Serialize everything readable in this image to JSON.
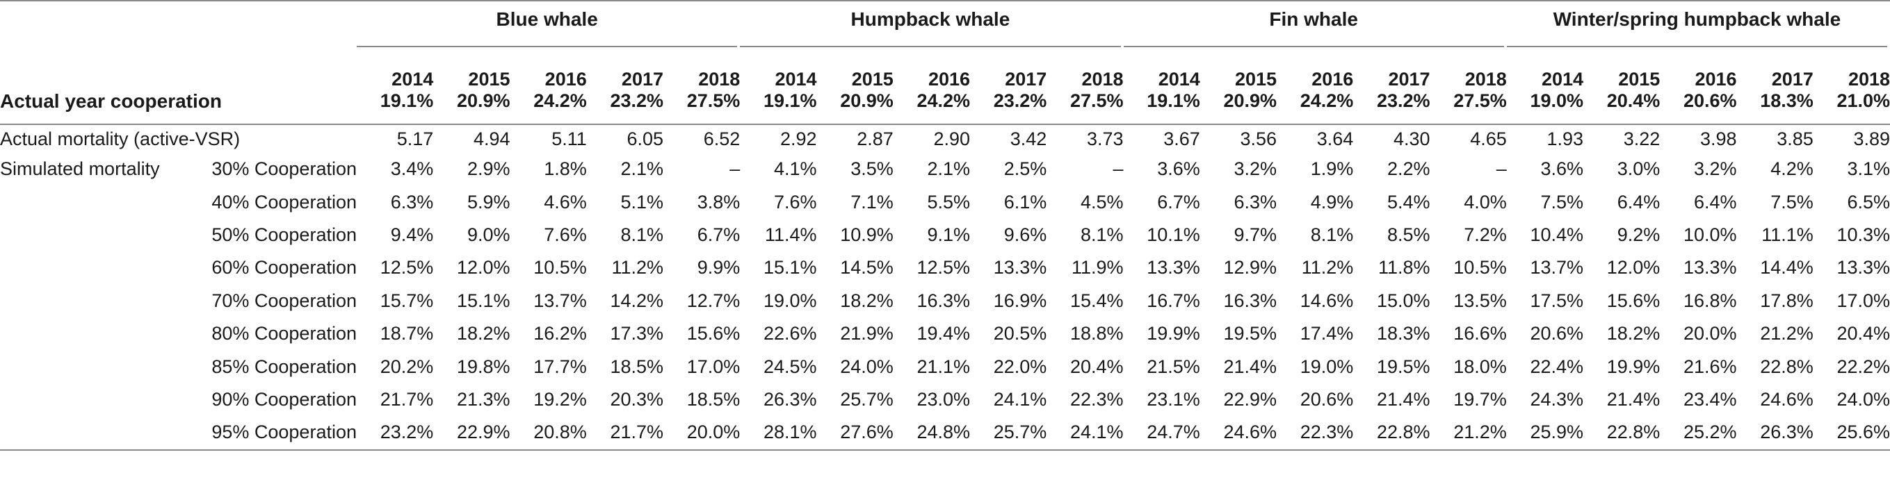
{
  "header": {
    "corner_label": "Actual year cooperation",
    "groups": [
      {
        "name": "Blue whale",
        "years": [
          "2014",
          "2015",
          "2016",
          "2017",
          "2018"
        ],
        "pcts": [
          "19.1%",
          "20.9%",
          "24.2%",
          "23.2%",
          "27.5%"
        ]
      },
      {
        "name": "Humpback whale",
        "years": [
          "2014",
          "2015",
          "2016",
          "2017",
          "2018"
        ],
        "pcts": [
          "19.1%",
          "20.9%",
          "24.2%",
          "23.2%",
          "27.5%"
        ]
      },
      {
        "name": "Fin whale",
        "years": [
          "2014",
          "2015",
          "2016",
          "2017",
          "2018"
        ],
        "pcts": [
          "19.1%",
          "20.9%",
          "24.2%",
          "23.2%",
          "27.5%"
        ]
      },
      {
        "name": "Winter/spring humpback whale",
        "years": [
          "2014",
          "2015",
          "2016",
          "2017",
          "2018"
        ],
        "pcts": [
          "19.0%",
          "20.4%",
          "20.6%",
          "18.3%",
          "21.0%"
        ]
      }
    ]
  },
  "rows": [
    {
      "label": "Actual mortality (active-VSR)",
      "sub": "",
      "values": [
        "5.17",
        "4.94",
        "5.11",
        "6.05",
        "6.52",
        "2.92",
        "2.87",
        "2.90",
        "3.42",
        "3.73",
        "3.67",
        "3.56",
        "3.64",
        "4.30",
        "4.65",
        "1.93",
        "3.22",
        "3.98",
        "3.85",
        "3.89"
      ]
    },
    {
      "label": "Simulated mortality",
      "sub": "30% Cooperation",
      "values": [
        "3.4%",
        "2.9%",
        "1.8%",
        "2.1%",
        "–",
        "4.1%",
        "3.5%",
        "2.1%",
        "2.5%",
        "–",
        "3.6%",
        "3.2%",
        "1.9%",
        "2.2%",
        "–",
        "3.6%",
        "3.0%",
        "3.2%",
        "4.2%",
        "3.1%"
      ]
    },
    {
      "label": "",
      "sub": "40% Cooperation",
      "values": [
        "6.3%",
        "5.9%",
        "4.6%",
        "5.1%",
        "3.8%",
        "7.6%",
        "7.1%",
        "5.5%",
        "6.1%",
        "4.5%",
        "6.7%",
        "6.3%",
        "4.9%",
        "5.4%",
        "4.0%",
        "7.5%",
        "6.4%",
        "6.4%",
        "7.5%",
        "6.5%"
      ]
    },
    {
      "label": "",
      "sub": "50% Cooperation",
      "values": [
        "9.4%",
        "9.0%",
        "7.6%",
        "8.1%",
        "6.7%",
        "11.4%",
        "10.9%",
        "9.1%",
        "9.6%",
        "8.1%",
        "10.1%",
        "9.7%",
        "8.1%",
        "8.5%",
        "7.2%",
        "10.4%",
        "9.2%",
        "10.0%",
        "11.1%",
        "10.3%"
      ]
    },
    {
      "label": "",
      "sub": "60% Cooperation",
      "values": [
        "12.5%",
        "12.0%",
        "10.5%",
        "11.2%",
        "9.9%",
        "15.1%",
        "14.5%",
        "12.5%",
        "13.3%",
        "11.9%",
        "13.3%",
        "12.9%",
        "11.2%",
        "11.8%",
        "10.5%",
        "13.7%",
        "12.0%",
        "13.3%",
        "14.4%",
        "13.3%"
      ]
    },
    {
      "label": "",
      "sub": "70% Cooperation",
      "values": [
        "15.7%",
        "15.1%",
        "13.7%",
        "14.2%",
        "12.7%",
        "19.0%",
        "18.2%",
        "16.3%",
        "16.9%",
        "15.4%",
        "16.7%",
        "16.3%",
        "14.6%",
        "15.0%",
        "13.5%",
        "17.5%",
        "15.6%",
        "16.8%",
        "17.8%",
        "17.0%"
      ]
    },
    {
      "label": "",
      "sub": "80% Cooperation",
      "values": [
        "18.7%",
        "18.2%",
        "16.2%",
        "17.3%",
        "15.6%",
        "22.6%",
        "21.9%",
        "19.4%",
        "20.5%",
        "18.8%",
        "19.9%",
        "19.5%",
        "17.4%",
        "18.3%",
        "16.6%",
        "20.6%",
        "18.2%",
        "20.0%",
        "21.2%",
        "20.4%"
      ]
    },
    {
      "label": "",
      "sub": "85% Cooperation",
      "values": [
        "20.2%",
        "19.8%",
        "17.7%",
        "18.5%",
        "17.0%",
        "24.5%",
        "24.0%",
        "21.1%",
        "22.0%",
        "20.4%",
        "21.5%",
        "21.4%",
        "19.0%",
        "19.5%",
        "18.0%",
        "22.4%",
        "19.9%",
        "21.6%",
        "22.8%",
        "22.2%"
      ]
    },
    {
      "label": "",
      "sub": "90% Cooperation",
      "values": [
        "21.7%",
        "21.3%",
        "19.2%",
        "20.3%",
        "18.5%",
        "26.3%",
        "25.7%",
        "23.0%",
        "24.1%",
        "22.3%",
        "23.1%",
        "22.9%",
        "20.6%",
        "21.4%",
        "19.7%",
        "24.3%",
        "21.4%",
        "23.4%",
        "24.6%",
        "24.0%"
      ]
    },
    {
      "label": "",
      "sub": "95% Cooperation",
      "values": [
        "23.2%",
        "22.9%",
        "20.8%",
        "21.7%",
        "20.0%",
        "28.1%",
        "27.6%",
        "24.8%",
        "25.7%",
        "24.1%",
        "24.7%",
        "24.6%",
        "22.3%",
        "22.8%",
        "21.2%",
        "25.9%",
        "22.8%",
        "25.2%",
        "26.3%",
        "25.6%"
      ]
    }
  ]
}
